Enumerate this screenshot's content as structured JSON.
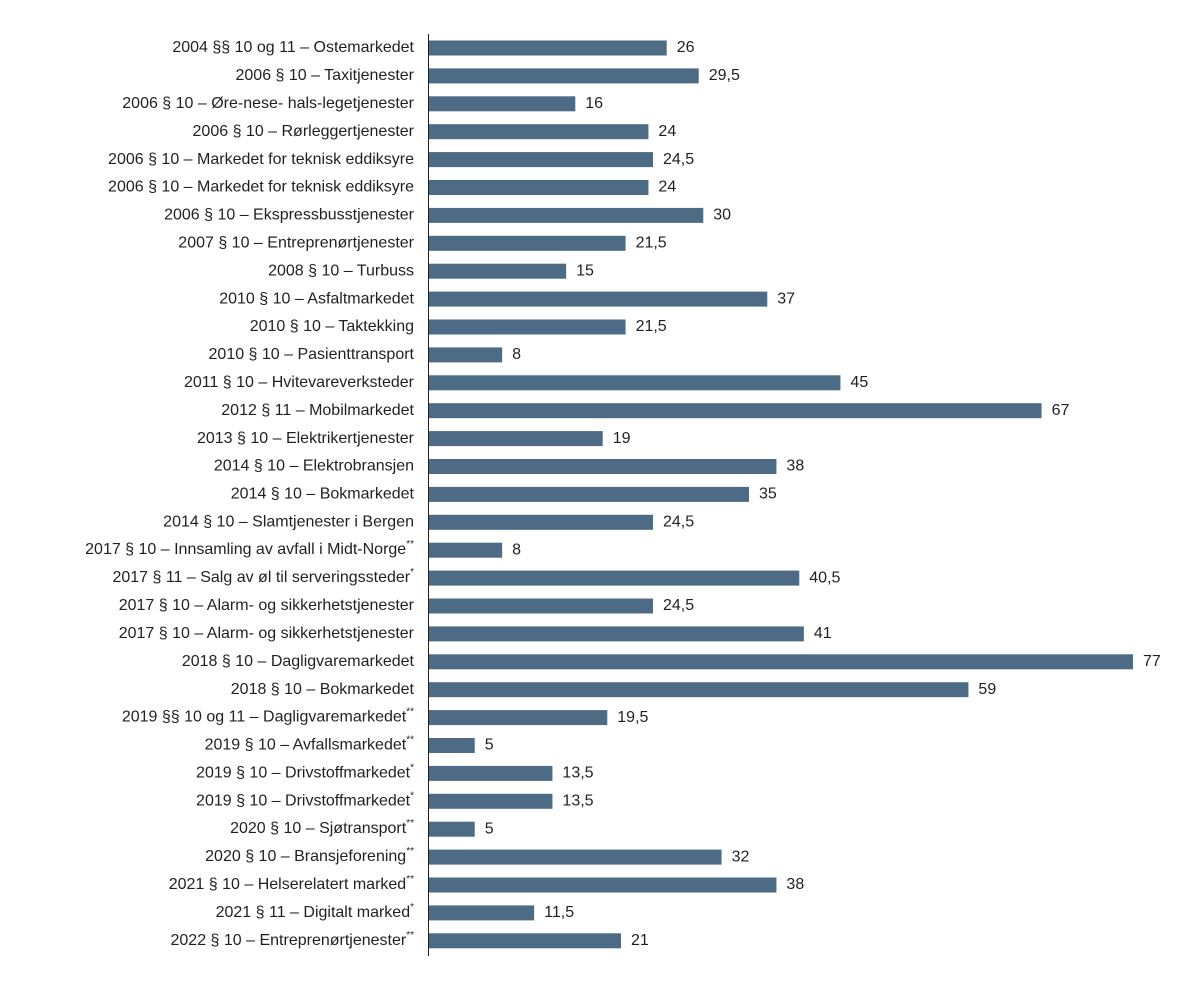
{
  "chart_data": {
    "type": "bar",
    "orientation": "horizontal",
    "color": "#4d6b85",
    "categories": [
      "2004 §§ 10 og 11 – Ostemarkedet",
      "2006 § 10 – Taxitjenester",
      "2006 § 10 – Øre-nese- hals-legetjenester",
      "2006 § 10 – Rørleggertjenester",
      "2006 § 10 – Markedet for teknisk eddiksyre",
      "2006 § 10 – Markedet for teknisk eddiksyre",
      "2006 § 10 – Ekspressbusstjenester",
      "2007 § 10 – Entreprenørtjenester",
      "2008 § 10 – Turbuss",
      "2010 § 10 – Asfaltmarkedet",
      "2010 § 10 – Taktekking",
      "2010 § 10 – Pasienttransport",
      "2011 § 10 – Hvitevareverksteder",
      "2012 § 11 – Mobilmarkedet",
      "2013 § 10 – Elektrikertjenester",
      "2014 § 10 – Elektrobransjen",
      "2014 § 10 – Bokmarkedet",
      "2014 § 10 – Slamtjenester i Bergen",
      "2017 § 10 – Innsamling av avfall i Midt-Norge**",
      "2017 § 11 – Salg av øl til serveringssteder*",
      "2017 § 10 – Alarm- og sikkerhetstjenester",
      "2017 § 10 – Alarm- og sikkerhetstjenester",
      "2018 § 10 – Dagligvaremarkedet",
      "2018 § 10 – Bokmarkedet",
      "2019 §§ 10 og 11 – Dagligvaremarkedet**",
      "2019 § 10 – Avfallsmarkedet**",
      "2019 § 10 – Drivstoffmarkedet*",
      "2019 § 10 – Drivstoffmarkedet*",
      "2020 § 10 – Sjøtransport**",
      "2020 § 10 – Bransjeforening**",
      "2021 § 10 – Helserelatert marked**",
      "2021 § 11 – Digitalt marked*",
      "2022 § 10 – Entreprenørtjenester**"
    ],
    "values": [
      26,
      29.5,
      16,
      24,
      24.5,
      24,
      30,
      21.5,
      15,
      37,
      21.5,
      8,
      45,
      67,
      19,
      38,
      35,
      24.5,
      8,
      40.5,
      24.5,
      41,
      77,
      59,
      19.5,
      5,
      13.5,
      13.5,
      5,
      32,
      38,
      11.5,
      21
    ],
    "value_labels": [
      "26",
      "29,5",
      "16",
      "24",
      "24,5",
      "24",
      "30",
      "21,5",
      "15",
      "37",
      "21,5",
      "8",
      "45",
      "67",
      "19",
      "38",
      "35",
      "24,5",
      "8",
      "40,5",
      "24,5",
      "41",
      "77",
      "59",
      "19,5",
      "5",
      "13,5",
      "13,5",
      "5",
      "32",
      "38",
      "11,5",
      "21"
    ]
  }
}
